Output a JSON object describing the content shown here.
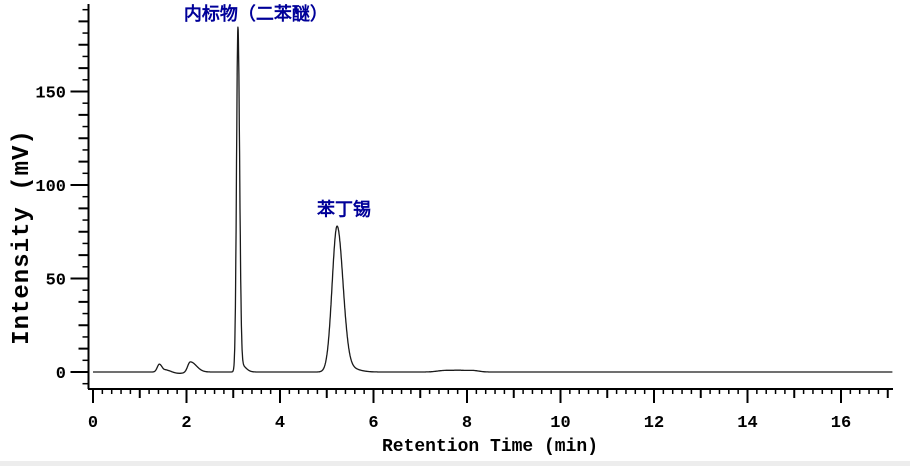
{
  "chart_data": {
    "type": "line",
    "title": "",
    "xlabel": "Retention Time (min)",
    "ylabel": "Intensity (mV)",
    "x_range": [
      0,
      17.1
    ],
    "y_range": [
      -10,
      196
    ],
    "grid": false,
    "legend": null,
    "x_ticks": {
      "major_step": 2,
      "medium_step": 1,
      "minor_step": 0.2,
      "major_values": [
        0,
        2,
        4,
        6,
        8,
        10,
        12,
        14,
        16
      ],
      "major_labels": [
        "0",
        "2",
        "4",
        "6",
        "8",
        "10",
        "12",
        "14",
        "16"
      ]
    },
    "y_ticks": {
      "major_step": 50,
      "medium_step": 12.5,
      "minor_step": 6.25,
      "major_values": [
        0,
        50,
        100,
        150
      ],
      "major_labels": [
        "0",
        "50",
        "100",
        "150"
      ]
    },
    "baseline_mV": 0,
    "peaks": [
      {
        "name": "minor-bump-1",
        "rt": 1.42,
        "height_mV": 4.2,
        "sigma_left": 0.045,
        "sigma_right": 0.06
      },
      {
        "name": "minor-bump-1-tail",
        "rt": 1.57,
        "height_mV": 1.0,
        "sigma_left": 0.04,
        "sigma_right": 0.09
      },
      {
        "name": "baseline-dip",
        "rt": 1.85,
        "height_mV": -0.7,
        "sigma_left": 0.12,
        "sigma_right": 0.12
      },
      {
        "name": "minor-bump-2",
        "rt": 2.08,
        "height_mV": 5.5,
        "sigma_left": 0.055,
        "sigma_right": 0.13
      },
      {
        "name": "internal-standard",
        "rt": 3.1,
        "height_mV": 182,
        "sigma_left": 0.03,
        "sigma_right": 0.036,
        "label": "内标物（二苯醚）"
      },
      {
        "name": "internal-standard-base",
        "rt": 3.16,
        "height_mV": 4.0,
        "sigma_left": 0.06,
        "sigma_right": 0.1
      },
      {
        "name": "fenbutatin-oxide",
        "rt": 5.22,
        "height_mV": 77,
        "sigma_left": 0.105,
        "sigma_right": 0.125,
        "label": "苯丁锡"
      },
      {
        "name": "fenbutatin-tail",
        "rt": 5.42,
        "height_mV": 2.5,
        "sigma_left": 0.15,
        "sigma_right": 0.22
      },
      {
        "name": "baseline-noise-1",
        "rt": 7.5,
        "height_mV": 0.7,
        "sigma_left": 0.15,
        "sigma_right": 0.15
      },
      {
        "name": "baseline-noise-2",
        "rt": 7.85,
        "height_mV": 0.9,
        "sigma_left": 0.18,
        "sigma_right": 0.18
      },
      {
        "name": "baseline-noise-3",
        "rt": 8.15,
        "height_mV": 0.6,
        "sigma_left": 0.1,
        "sigma_right": 0.12
      }
    ],
    "annotations": [
      {
        "text": "内标物（二苯醚）",
        "rt": 3.1,
        "mV": 186,
        "color": "#000099"
      },
      {
        "text": "苯丁锡",
        "rt": 5.22,
        "mV": 79,
        "color": "#000099"
      }
    ],
    "colors": {
      "trace": "#1a1a1a",
      "axis": "#000000",
      "annotation": "#000099",
      "background": "#ffffff",
      "bottom_strip": "#ededed"
    }
  }
}
